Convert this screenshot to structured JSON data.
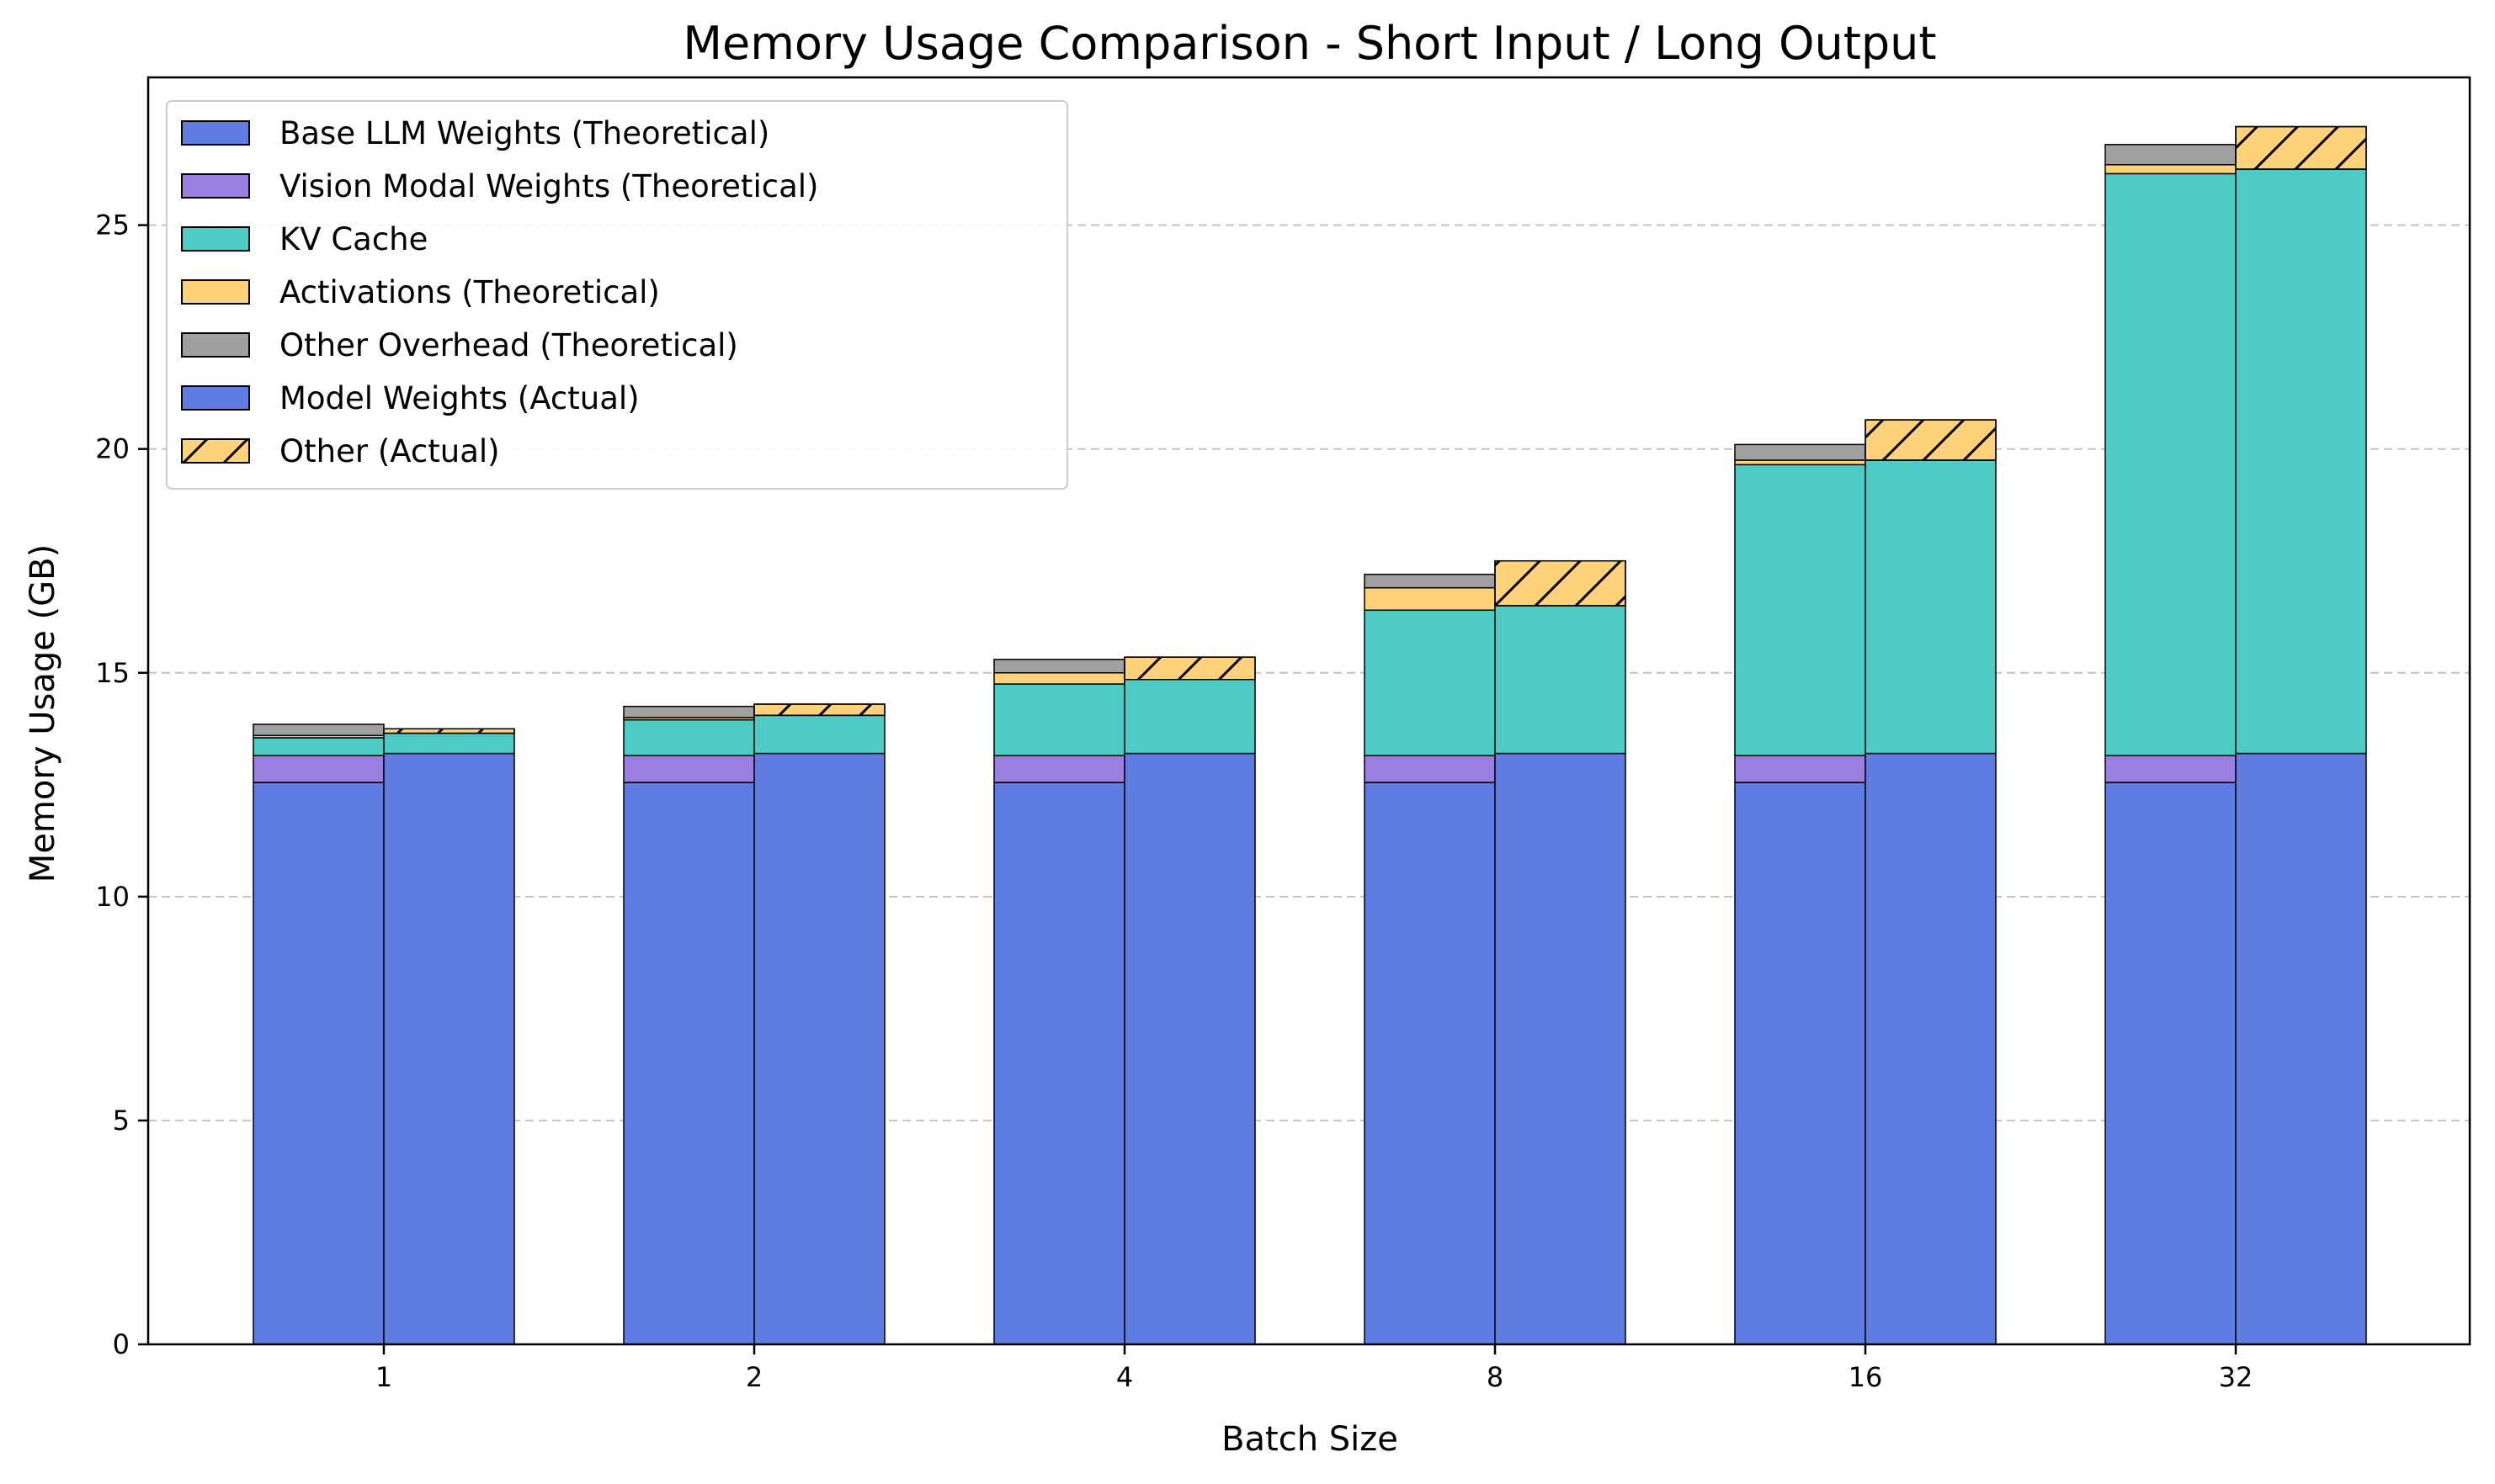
{
  "chart_data": {
    "type": "bar",
    "title": "Memory Usage Comparison - Short Input / Long Output",
    "xlabel": "Batch Size",
    "ylabel": "Memory Usage (GB)",
    "ylim": [
      0,
      28.3
    ],
    "yticks": [
      0,
      5,
      10,
      15,
      20,
      25
    ],
    "grid": "y-dashed",
    "legend_position": "upper-left",
    "categories": [
      "1",
      "2",
      "4",
      "8",
      "16",
      "32"
    ],
    "theoretical_series": [
      {
        "name": "Base LLM Weights (Theoretical)",
        "color": "#5f7ce2",
        "hatch": false,
        "values": [
          12.55,
          12.55,
          12.55,
          12.55,
          12.55,
          12.55
        ]
      },
      {
        "name": "Vision Modal Weights (Theoretical)",
        "color": "#9b7fe0",
        "hatch": false,
        "values": [
          0.6,
          0.6,
          0.6,
          0.6,
          0.6,
          0.6
        ]
      },
      {
        "name": "KV Cache",
        "color": "#4ecbc4",
        "hatch": false,
        "values": [
          0.4,
          0.8,
          1.6,
          3.25,
          6.5,
          13.0
        ]
      },
      {
        "name": "Activations (Theoretical)",
        "color": "#fdd27a",
        "hatch": false,
        "values": [
          0.05,
          0.05,
          0.25,
          0.5,
          0.1,
          0.2
        ]
      },
      {
        "name": "Other Overhead (Theoretical)",
        "color": "#a0a0a0",
        "hatch": false,
        "values": [
          0.25,
          0.25,
          0.3,
          0.3,
          0.35,
          0.45
        ]
      }
    ],
    "actual_series": [
      {
        "name": "Model Weights (Actual)",
        "color": "#5f7ce2",
        "hatch": false,
        "values": [
          13.2,
          13.2,
          13.2,
          13.2,
          13.2,
          13.2
        ]
      },
      {
        "name": "KV Cache",
        "color": "#4ecbc4",
        "hatch": false,
        "in_legend": false,
        "values": [
          0.45,
          0.85,
          1.65,
          3.3,
          6.55,
          13.05
        ]
      },
      {
        "name": "Other (Actual)",
        "color": "#fdd27a",
        "hatch": true,
        "values": [
          0.1,
          0.25,
          0.5,
          1.0,
          0.9,
          0.95
        ]
      }
    ]
  }
}
